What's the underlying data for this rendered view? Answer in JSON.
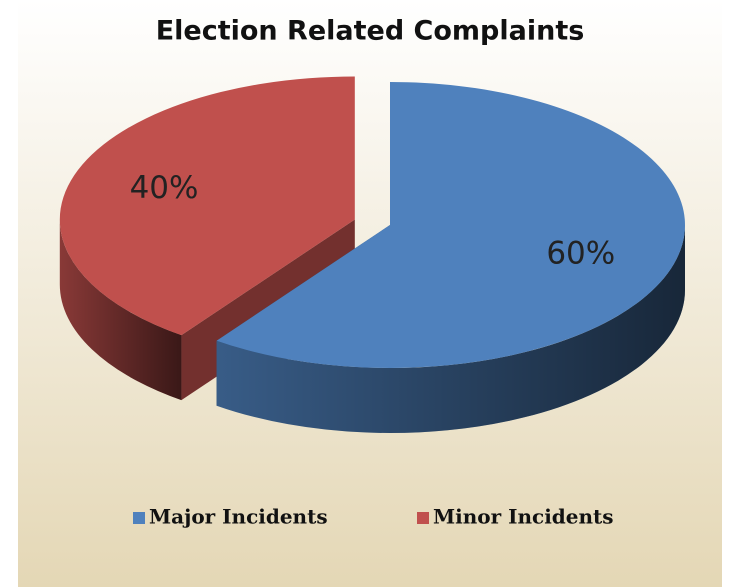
{
  "chart_data": {
    "type": "pie3d",
    "title": "Election Related Complaints",
    "categories": [
      "Major Incidents",
      "Minor Incidents"
    ],
    "values": [
      60,
      40
    ],
    "value_labels": [
      "60%",
      "40%"
    ],
    "colors": [
      "#4f81bd",
      "#c0504d"
    ],
    "legend": "bottom"
  }
}
